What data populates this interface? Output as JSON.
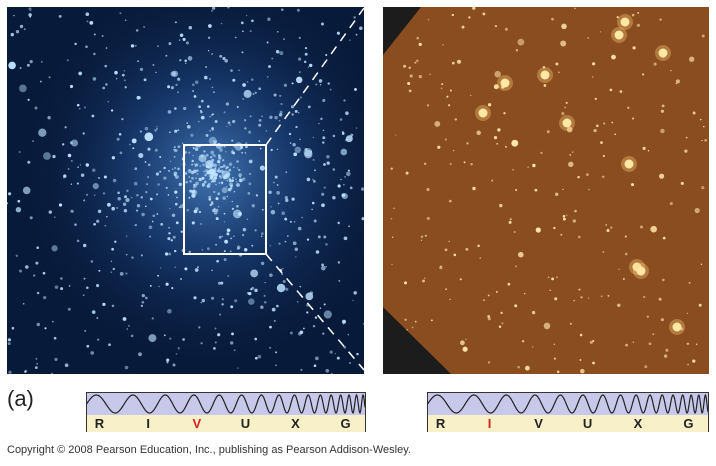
{
  "figure": {
    "part_label": "(a)",
    "copyright": "Copyright © 2008 Pearson Education, Inc., publishing as Pearson Addison-Wesley.",
    "colors": {
      "visible_bg": "#081a3a",
      "visible_star": "#bfe3ff",
      "infrared_bg": "#8a4d1f",
      "infrared_star": "#ffe7a6",
      "highlight_band": "#d6231e",
      "wave_fill": "#c7c8ea",
      "band_fill": "#f8f0c8"
    },
    "spectra": [
      {
        "bands": [
          "R",
          "I",
          "V",
          "U",
          "X",
          "G"
        ],
        "highlight": "V"
      },
      {
        "bands": [
          "R",
          "I",
          "V",
          "U",
          "X",
          "G"
        ],
        "highlight": "I"
      }
    ]
  }
}
